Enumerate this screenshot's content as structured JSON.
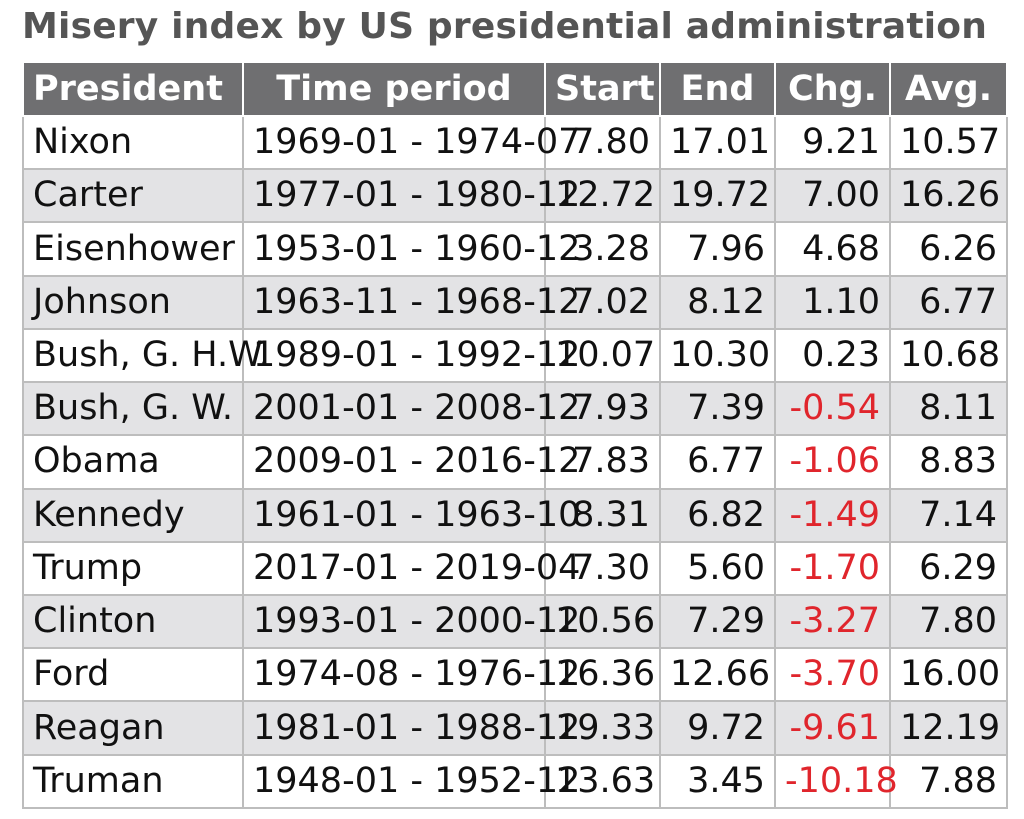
{
  "title": "Misery index by US presidential administration",
  "columns": [
    "President",
    "Time period",
    "Start",
    "End",
    "Chg.",
    "Avg."
  ],
  "colors": {
    "header_bg": "#6f6f71",
    "negative": "#e0252c",
    "stripe": "#e3e3e5"
  },
  "rows": [
    {
      "president": "Nixon",
      "period": "1969-01 - 1974-07",
      "start": "7.80",
      "end": "17.01",
      "chg": "9.21",
      "avg": "10.57"
    },
    {
      "president": "Carter",
      "period": "1977-01 - 1980-12",
      "start": "12.72",
      "end": "19.72",
      "chg": "7.00",
      "avg": "16.26"
    },
    {
      "president": "Eisenhower",
      "period": "1953-01 - 1960-12",
      "start": "3.28",
      "end": "7.96",
      "chg": "4.68",
      "avg": "6.26"
    },
    {
      "president": "Johnson",
      "period": "1963-11 - 1968-12",
      "start": "7.02",
      "end": "8.12",
      "chg": "1.10",
      "avg": "6.77"
    },
    {
      "president": "Bush, G. H.W.",
      "period": "1989-01 - 1992-12",
      "start": "10.07",
      "end": "10.30",
      "chg": "0.23",
      "avg": "10.68"
    },
    {
      "president": "Bush, G. W.",
      "period": "2001-01 - 2008-12",
      "start": "7.93",
      "end": "7.39",
      "chg": "-0.54",
      "avg": "8.11"
    },
    {
      "president": "Obama",
      "period": "2009-01 - 2016-12",
      "start": "7.83",
      "end": "6.77",
      "chg": "-1.06",
      "avg": "8.83"
    },
    {
      "president": "Kennedy",
      "period": "1961-01 - 1963-10",
      "start": "8.31",
      "end": "6.82",
      "chg": "-1.49",
      "avg": "7.14"
    },
    {
      "president": "Trump",
      "period": "2017-01 - 2019-04",
      "start": "7.30",
      "end": "5.60",
      "chg": "-1.70",
      "avg": "6.29"
    },
    {
      "president": "Clinton",
      "period": "1993-01 - 2000-12",
      "start": "10.56",
      "end": "7.29",
      "chg": "-3.27",
      "avg": "7.80"
    },
    {
      "president": "Ford",
      "period": "1974-08 - 1976-12",
      "start": "16.36",
      "end": "12.66",
      "chg": "-3.70",
      "avg": "16.00"
    },
    {
      "president": "Reagan",
      "period": "1981-01 - 1988-12",
      "start": "19.33",
      "end": "9.72",
      "chg": "-9.61",
      "avg": "12.19"
    },
    {
      "president": "Truman",
      "period": "1948-01 - 1952-12",
      "start": "13.63",
      "end": "3.45",
      "chg": "-10.18",
      "avg": "7.88"
    }
  ]
}
